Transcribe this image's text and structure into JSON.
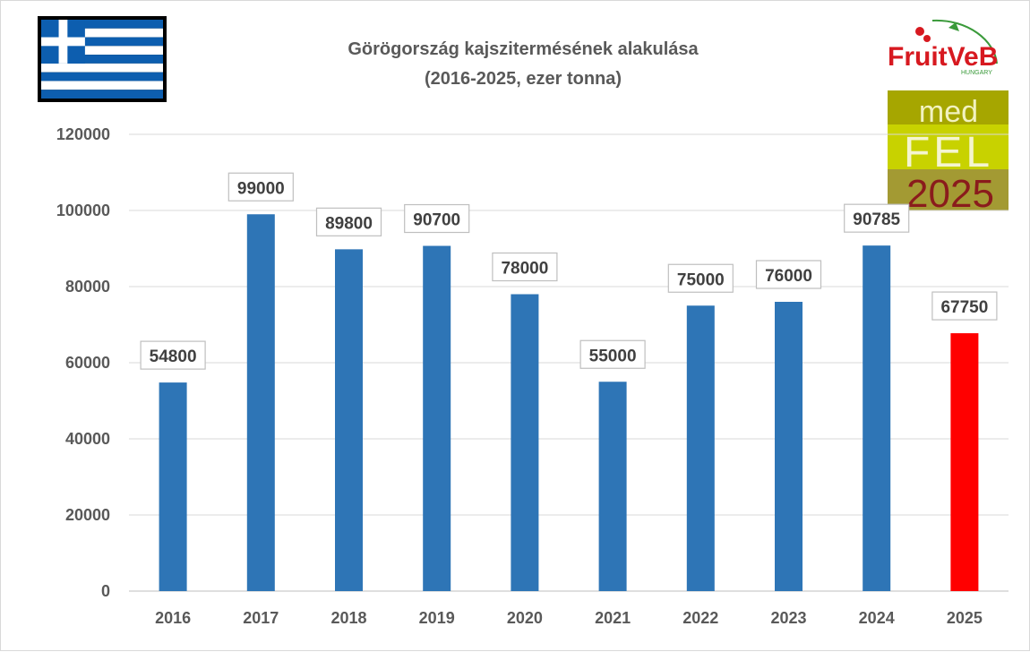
{
  "chart_data": {
    "type": "bar",
    "title_lines": [
      "Görögország kajszitermésének alakulása",
      "(2016-2025, ezer tonna)"
    ],
    "categories": [
      "2016",
      "2017",
      "2018",
      "2019",
      "2020",
      "2021",
      "2022",
      "2023",
      "2024",
      "2025"
    ],
    "values": [
      54800,
      99000,
      89800,
      90700,
      78000,
      55000,
      75000,
      76000,
      90785,
      67750
    ],
    "ylim": [
      0,
      120000
    ],
    "yticks": [
      "0",
      "20000",
      "40000",
      "60000",
      "80000",
      "100000",
      "120000"
    ],
    "grid": true,
    "data_labels": true,
    "colors": {
      "default": "#2e75b6",
      "highlight": "#ff0000",
      "highlight_index": 9
    }
  },
  "logos": {
    "fruitveb": {
      "main": "FruitVeB",
      "sub": "HUNGARY",
      "accent": "#d71920",
      "green": "#3a9a3a"
    },
    "medfel": {
      "line1": "med",
      "line2": "FEL",
      "line3": "2025"
    }
  },
  "flag": {
    "name": "greece-flag",
    "blue": "#0d5eaf"
  }
}
